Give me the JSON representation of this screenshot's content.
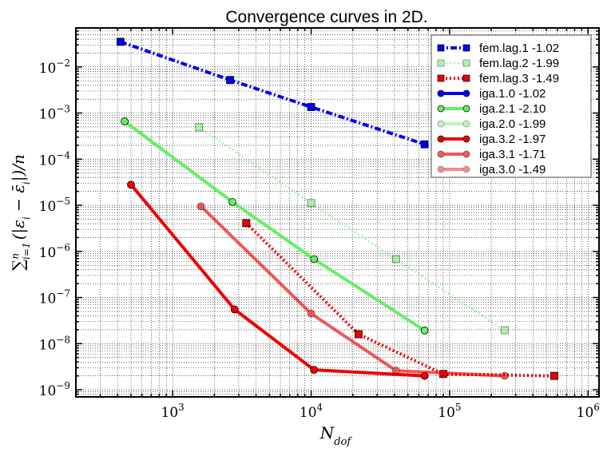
{
  "chart_data": {
    "type": "line",
    "title": "Convergence curves in 2D.",
    "xlabel": "N_dof",
    "ylabel": "∑_{i=1}^{n} (|ε_i − ε̄_i|)/n",
    "xscale": "log",
    "yscale": "log",
    "xlim": [
      200,
      1200000
    ],
    "ylim": [
      7e-10,
      0.07
    ],
    "grid": true,
    "legend_position": "top-right",
    "x_ticks": [
      {
        "base": "10",
        "exp": "3",
        "value": 1000
      },
      {
        "base": "10",
        "exp": "4",
        "value": 10000
      },
      {
        "base": "10",
        "exp": "5",
        "value": 100000
      },
      {
        "base": "10",
        "exp": "6",
        "value": 1000000
      }
    ],
    "y_ticks": [
      {
        "base": "10",
        "exp": "−2",
        "value": 0.01
      },
      {
        "base": "10",
        "exp": "−3",
        "value": 0.001
      },
      {
        "base": "10",
        "exp": "−4",
        "value": 0.0001
      },
      {
        "base": "10",
        "exp": "−5",
        "value": 1e-05
      },
      {
        "base": "10",
        "exp": "−6",
        "value": 1e-06
      },
      {
        "base": "10",
        "exp": "−7",
        "value": 1e-07
      },
      {
        "base": "10",
        "exp": "−8",
        "value": 1e-08
      },
      {
        "base": "10",
        "exp": "−9",
        "value": 1e-09
      }
    ],
    "series": [
      {
        "name": "fem.lag.1 -1.02",
        "color": "#0000ee",
        "dash": "dashdot",
        "marker": "square",
        "lw": 4,
        "alpha": 1.0,
        "x": [
          420,
          2600,
          10000,
          66000
        ],
        "y": [
          0.035,
          0.0052,
          0.00135,
          0.00021
        ]
      },
      {
        "name": "fem.lag.2 -1.99",
        "color": "#66ee66",
        "dash": "dotted",
        "marker": "square",
        "lw": 3,
        "alpha": 0.55,
        "x": [
          1550,
          10000,
          41000,
          250000
        ],
        "y": [
          0.00049,
          1.12e-05,
          6.8e-07,
          1.95e-08
        ]
      },
      {
        "name": "fem.lag.3 -1.49",
        "color": "#ee0000",
        "dash": "dotted",
        "marker": "square",
        "lw": 4,
        "alpha": 1.0,
        "x": [
          3400,
          22000,
          90000,
          570000
        ],
        "y": [
          4.1e-06,
          1.6e-08,
          2.2e-09,
          2e-09
        ]
      },
      {
        "name": "iga.1.0 -1.02",
        "color": "#0000ee",
        "dash": "solid",
        "marker": "circle",
        "lw": 4,
        "alpha": 1.0,
        "x": [],
        "y": []
      },
      {
        "name": "iga.2.1 -2.10",
        "color": "#66ee66",
        "dash": "solid",
        "marker": "circle",
        "lw": 4,
        "alpha": 1.0,
        "x": [
          450,
          2700,
          10500,
          66000
        ],
        "y": [
          0.00066,
          1.18e-05,
          6.8e-07,
          1.93e-08
        ]
      },
      {
        "name": "iga.2.0 -1.99",
        "color": "#66ee66",
        "dash": "solid",
        "marker": "circle",
        "lw": 4,
        "alpha": 0.45,
        "x": [],
        "y": []
      },
      {
        "name": "iga.3.2 -1.97",
        "color": "#ee0000",
        "dash": "solid",
        "marker": "circle",
        "lw": 4,
        "alpha": 1.0,
        "x": [
          500,
          2800,
          10500,
          66000
        ],
        "y": [
          2.8e-05,
          5.5e-08,
          2.7e-09,
          2e-09
        ]
      },
      {
        "name": "iga.3.1 -1.71",
        "color": "#ee0000",
        "dash": "solid",
        "marker": "circle",
        "lw": 4,
        "alpha": 0.65,
        "x": [
          1600,
          10000,
          41000,
          250000
        ],
        "y": [
          9.5e-06,
          4.5e-08,
          2.6e-09,
          2e-09
        ]
      },
      {
        "name": "iga.3.0 -1.49",
        "color": "#ee0000",
        "dash": "solid",
        "marker": "circle",
        "lw": 4,
        "alpha": 0.45,
        "x": [],
        "y": []
      }
    ]
  }
}
